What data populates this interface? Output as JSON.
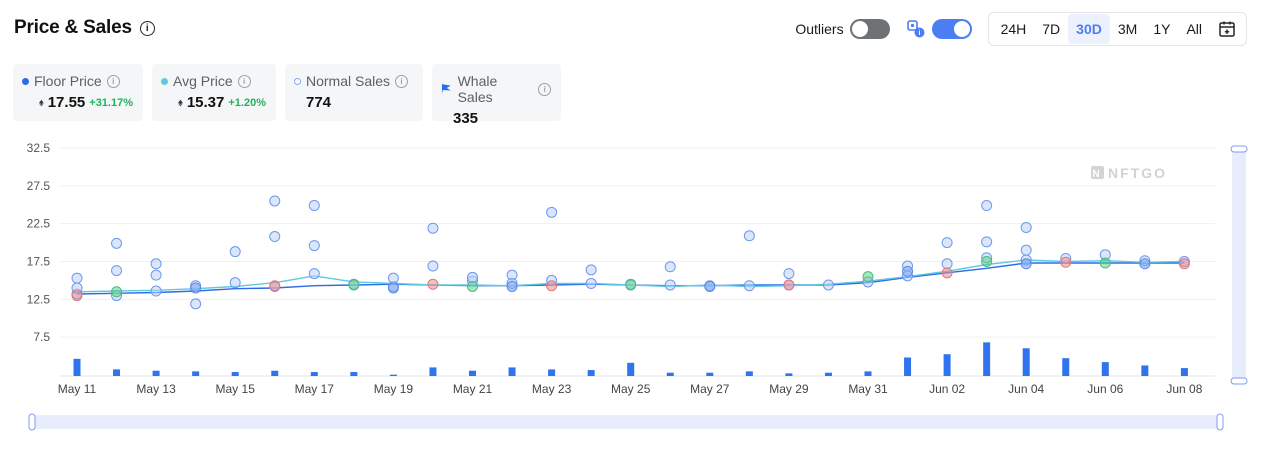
{
  "header": {
    "title": "Price & Sales",
    "outliers_label": "Outliers",
    "ranges": [
      "24H",
      "7D",
      "30D",
      "3M",
      "1Y",
      "All"
    ],
    "active_range": "30D"
  },
  "stats": {
    "floor": {
      "label": "Floor Price",
      "value": "17.55",
      "change": "+31.17%"
    },
    "avg": {
      "label": "Avg Price",
      "value": "15.37",
      "change": "+1.20%"
    },
    "normal": {
      "label": "Normal Sales",
      "value": "774"
    },
    "whale": {
      "label": "Whale Sales",
      "value": "335"
    }
  },
  "colors": {
    "accent": "#4d7df2",
    "floor": "#2e6be6",
    "avg": "#5ccbdf",
    "positive": "#1eb45a",
    "sale_blue": "#7ea6ef",
    "sale_red": "#e98a8a",
    "sale_green": "#5ccf88",
    "bar": "#2f73ee"
  },
  "watermark": "NFTGO",
  "chart_data": {
    "type": "scatter",
    "x_type": "date",
    "x_ticks": [
      "May 11",
      "May 13",
      "May 15",
      "May 17",
      "May 19",
      "May 21",
      "May 23",
      "May 25",
      "May 27",
      "May 29",
      "May 31",
      "Jun 02",
      "Jun 04",
      "Jun 06",
      "Jun 08"
    ],
    "y_ticks": [
      7.5,
      12.5,
      17.5,
      22.5,
      27.5,
      32.5
    ],
    "ylim": [
      2.5,
      32.5
    ],
    "series": [
      {
        "name": "Floor Price",
        "type": "line",
        "color": "#2e6be6",
        "points": [
          [
            "May 11",
            13.2
          ],
          [
            "May 12",
            13.3
          ],
          [
            "May 13",
            13.4
          ],
          [
            "May 14",
            13.6
          ],
          [
            "May 15",
            13.9
          ],
          [
            "May 16",
            14.0
          ],
          [
            "May 17",
            14.3
          ],
          [
            "May 18",
            14.4
          ],
          [
            "May 19",
            14.5
          ],
          [
            "May 20",
            14.4
          ],
          [
            "May 21",
            14.3
          ],
          [
            "May 22",
            14.3
          ],
          [
            "May 23",
            14.4
          ],
          [
            "May 24",
            14.5
          ],
          [
            "May 25",
            14.4
          ],
          [
            "May 26",
            14.3
          ],
          [
            "May 27",
            14.3
          ],
          [
            "May 28",
            14.4
          ],
          [
            "May 29",
            14.4
          ],
          [
            "May 30",
            14.4
          ],
          [
            "May 31",
            14.7
          ],
          [
            "Jun 01",
            15.4
          ],
          [
            "Jun 02",
            16.0
          ],
          [
            "Jun 03",
            16.6
          ],
          [
            "Jun 04",
            17.3
          ],
          [
            "Jun 05",
            17.3
          ],
          [
            "Jun 06",
            17.3
          ],
          [
            "Jun 07",
            17.3
          ],
          [
            "Jun 08",
            17.3
          ]
        ]
      },
      {
        "name": "Avg Price",
        "type": "line",
        "color": "#5ccbdf",
        "points": [
          [
            "May 11",
            13.5
          ],
          [
            "May 12",
            13.6
          ],
          [
            "May 13",
            13.7
          ],
          [
            "May 14",
            13.9
          ],
          [
            "May 15",
            14.2
          ],
          [
            "May 16",
            14.7
          ],
          [
            "May 17",
            15.6
          ],
          [
            "May 18",
            14.8
          ],
          [
            "May 19",
            14.6
          ],
          [
            "May 20",
            14.4
          ],
          [
            "May 21",
            14.4
          ],
          [
            "May 22",
            14.3
          ],
          [
            "May 23",
            14.6
          ],
          [
            "May 24",
            14.6
          ],
          [
            "May 25",
            14.4
          ],
          [
            "May 26",
            14.2
          ],
          [
            "May 27",
            14.4
          ],
          [
            "May 28",
            14.2
          ],
          [
            "May 29",
            14.3
          ],
          [
            "May 30",
            14.5
          ],
          [
            "May 31",
            14.9
          ],
          [
            "Jun 01",
            15.5
          ],
          [
            "Jun 02",
            16.2
          ],
          [
            "Jun 03",
            17.1
          ],
          [
            "Jun 04",
            17.7
          ],
          [
            "Jun 05",
            17.5
          ],
          [
            "Jun 06",
            17.6
          ],
          [
            "Jun 07",
            17.4
          ],
          [
            "Jun 08",
            17.5
          ]
        ]
      },
      {
        "name": "Normal Sales",
        "type": "scatter",
        "points": [
          [
            "May 11",
            13.2
          ],
          [
            "May 11",
            15.3
          ],
          [
            "May 11",
            14.0
          ],
          [
            "May 12",
            19.9
          ],
          [
            "May 12",
            16.3
          ],
          [
            "May 12",
            13.0
          ],
          [
            "May 13",
            15.7
          ],
          [
            "May 13",
            17.2
          ],
          [
            "May 13",
            13.6
          ],
          [
            "May 14",
            11.9
          ],
          [
            "May 14",
            14.3
          ],
          [
            "May 15",
            18.8
          ],
          [
            "May 15",
            14.7
          ],
          [
            "May 16",
            20.8
          ],
          [
            "May 16",
            14.2
          ],
          [
            "May 16",
            25.5
          ],
          [
            "May 17",
            24.9
          ],
          [
            "May 17",
            19.6
          ],
          [
            "May 17",
            15.9
          ],
          [
            "May 18",
            14.5
          ],
          [
            "May 19",
            14.2
          ],
          [
            "May 19",
            15.3
          ],
          [
            "May 20",
            21.9
          ],
          [
            "May 20",
            16.9
          ],
          [
            "May 21",
            14.9
          ],
          [
            "May 21",
            15.4
          ],
          [
            "May 22",
            15.7
          ],
          [
            "May 22",
            14.6
          ],
          [
            "May 23",
            24.0
          ],
          [
            "May 23",
            15.0
          ],
          [
            "May 24",
            16.4
          ],
          [
            "May 24",
            14.6
          ],
          [
            "May 25",
            14.5
          ],
          [
            "May 26",
            14.4
          ],
          [
            "May 26",
            16.8
          ],
          [
            "May 27",
            14.3
          ],
          [
            "May 28",
            20.9
          ],
          [
            "May 28",
            14.3
          ],
          [
            "May 29",
            14.4
          ],
          [
            "May 29",
            15.9
          ],
          [
            "May 30",
            14.4
          ],
          [
            "May 31",
            14.8
          ],
          [
            "Jun 01",
            15.6
          ],
          [
            "Jun 01",
            16.9
          ],
          [
            "Jun 02",
            20.0
          ],
          [
            "Jun 02",
            17.2
          ],
          [
            "Jun 03",
            20.1
          ],
          [
            "Jun 03",
            24.9
          ],
          [
            "Jun 03",
            18.0
          ],
          [
            "Jun 04",
            22.0
          ],
          [
            "Jun 04",
            19.0
          ],
          [
            "Jun 04",
            17.7
          ],
          [
            "Jun 05",
            17.9
          ],
          [
            "Jun 06",
            18.4
          ],
          [
            "Jun 07",
            17.6
          ],
          [
            "Jun 08",
            17.5
          ]
        ]
      },
      {
        "name": "Whale Sales",
        "type": "scatter",
        "points": [
          [
            "May 11",
            13.0
          ],
          [
            "May 12",
            13.5
          ],
          [
            "May 14",
            14.0
          ],
          [
            "May 16",
            14.3
          ],
          [
            "May 18",
            14.4
          ],
          [
            "May 19",
            14.0
          ],
          [
            "May 20",
            14.5
          ],
          [
            "May 21",
            14.2
          ],
          [
            "May 22",
            14.2
          ],
          [
            "May 23",
            14.3
          ],
          [
            "May 25",
            14.4
          ],
          [
            "May 27",
            14.2
          ],
          [
            "May 29",
            14.4
          ],
          [
            "May 31",
            15.5
          ],
          [
            "Jun 01",
            16.2
          ],
          [
            "Jun 02",
            16.0
          ],
          [
            "Jun 03",
            17.5
          ],
          [
            "Jun 04",
            17.2
          ],
          [
            "Jun 05",
            17.4
          ],
          [
            "Jun 06",
            17.3
          ],
          [
            "Jun 07",
            17.2
          ],
          [
            "Jun 08",
            17.2
          ]
        ]
      },
      {
        "name": "Volume",
        "type": "bar",
        "color": "#2f73ee",
        "points": [
          [
            "May 11",
            2.6
          ],
          [
            "May 12",
            1.0
          ],
          [
            "May 13",
            0.8
          ],
          [
            "May 14",
            0.7
          ],
          [
            "May 15",
            0.6
          ],
          [
            "May 16",
            0.8
          ],
          [
            "May 17",
            0.6
          ],
          [
            "May 18",
            0.6
          ],
          [
            "May 19",
            0.2
          ],
          [
            "May 20",
            1.3
          ],
          [
            "May 21",
            0.8
          ],
          [
            "May 22",
            1.3
          ],
          [
            "May 23",
            1.0
          ],
          [
            "May 24",
            0.9
          ],
          [
            "May 25",
            2.0
          ],
          [
            "May 26",
            0.5
          ],
          [
            "May 27",
            0.5
          ],
          [
            "May 28",
            0.7
          ],
          [
            "May 29",
            0.4
          ],
          [
            "May 30",
            0.5
          ],
          [
            "May 31",
            0.7
          ],
          [
            "Jun 01",
            2.8
          ],
          [
            "Jun 02",
            3.3
          ],
          [
            "Jun 03",
            5.1
          ],
          [
            "Jun 04",
            4.2
          ],
          [
            "Jun 05",
            2.7
          ],
          [
            "Jun 06",
            2.1
          ],
          [
            "Jun 07",
            1.6
          ],
          [
            "Jun 08",
            1.2
          ]
        ]
      }
    ]
  }
}
